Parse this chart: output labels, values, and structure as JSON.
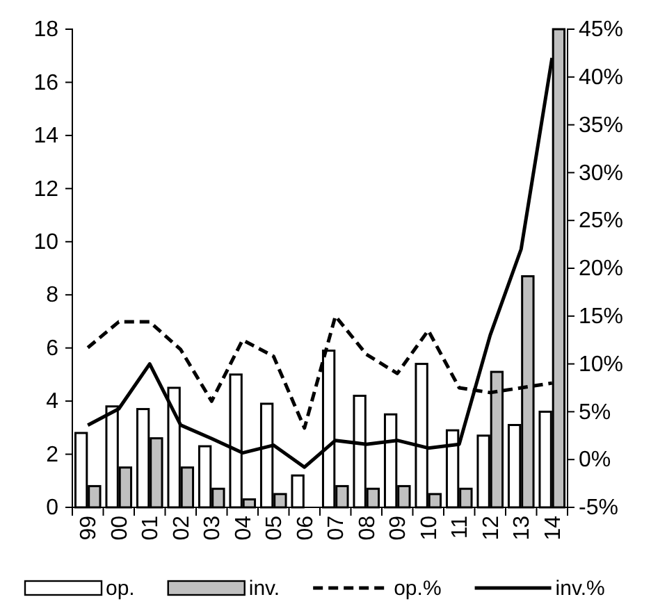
{
  "chart_data": {
    "type": "bar",
    "categories": [
      "99",
      "00",
      "01",
      "02",
      "03",
      "04",
      "05",
      "06",
      "07",
      "08",
      "09",
      "10",
      "11",
      "12",
      "13",
      "14"
    ],
    "series": [
      {
        "name": "op.",
        "color": "#ffffff",
        "values": [
          2.8,
          3.8,
          3.7,
          4.5,
          2.3,
          5.0,
          3.9,
          1.2,
          5.9,
          4.2,
          3.5,
          5.4,
          2.9,
          2.7,
          3.1,
          3.6
        ]
      },
      {
        "name": "inv.",
        "color": "#c0c0c0",
        "values": [
          0.8,
          1.5,
          2.6,
          1.5,
          0.7,
          0.3,
          0.5,
          0,
          0.8,
          0.7,
          0.8,
          0.5,
          0.7,
          5.1,
          8.7,
          18
        ]
      },
      {
        "name": "op.%",
        "type": "line",
        "axis": "y2",
        "color": "#000000",
        "line_style": "dashed",
        "values": [
          11.7,
          14.4,
          14.4,
          11.5,
          6.1,
          12.5,
          10.8,
          3.3,
          15,
          11,
          9,
          13.5,
          7.5,
          7,
          7.5,
          8
        ]
      },
      {
        "name": "inv.%",
        "type": "line",
        "axis": "y2",
        "color": "#000000",
        "line_style": "solid",
        "values": [
          3.6,
          5.3,
          10,
          3.6,
          2.2,
          0.7,
          1.5,
          -0.8,
          2,
          1.6,
          2,
          1.2,
          1.6,
          13,
          22,
          42
        ]
      }
    ],
    "ylim": [
      0,
      18
    ],
    "yticks": [
      0,
      2,
      4,
      6,
      8,
      10,
      12,
      14,
      16,
      18
    ],
    "y2lim": [
      -5,
      45
    ],
    "y2ticks": [
      {
        "value": -5,
        "label": "-5%"
      },
      {
        "value": 0,
        "label": "0%"
      },
      {
        "value": 5,
        "label": "5%"
      },
      {
        "value": 10,
        "label": "10%"
      },
      {
        "value": 15,
        "label": "15%"
      },
      {
        "value": 20,
        "label": "20%"
      },
      {
        "value": 25,
        "label": "25%"
      },
      {
        "value": 30,
        "label": "30%"
      },
      {
        "value": 35,
        "label": "35%"
      },
      {
        "value": 40,
        "label": "40%"
      },
      {
        "value": 45,
        "label": "45%"
      }
    ],
    "legend": "bottom",
    "grid": false,
    "marker": "none"
  }
}
